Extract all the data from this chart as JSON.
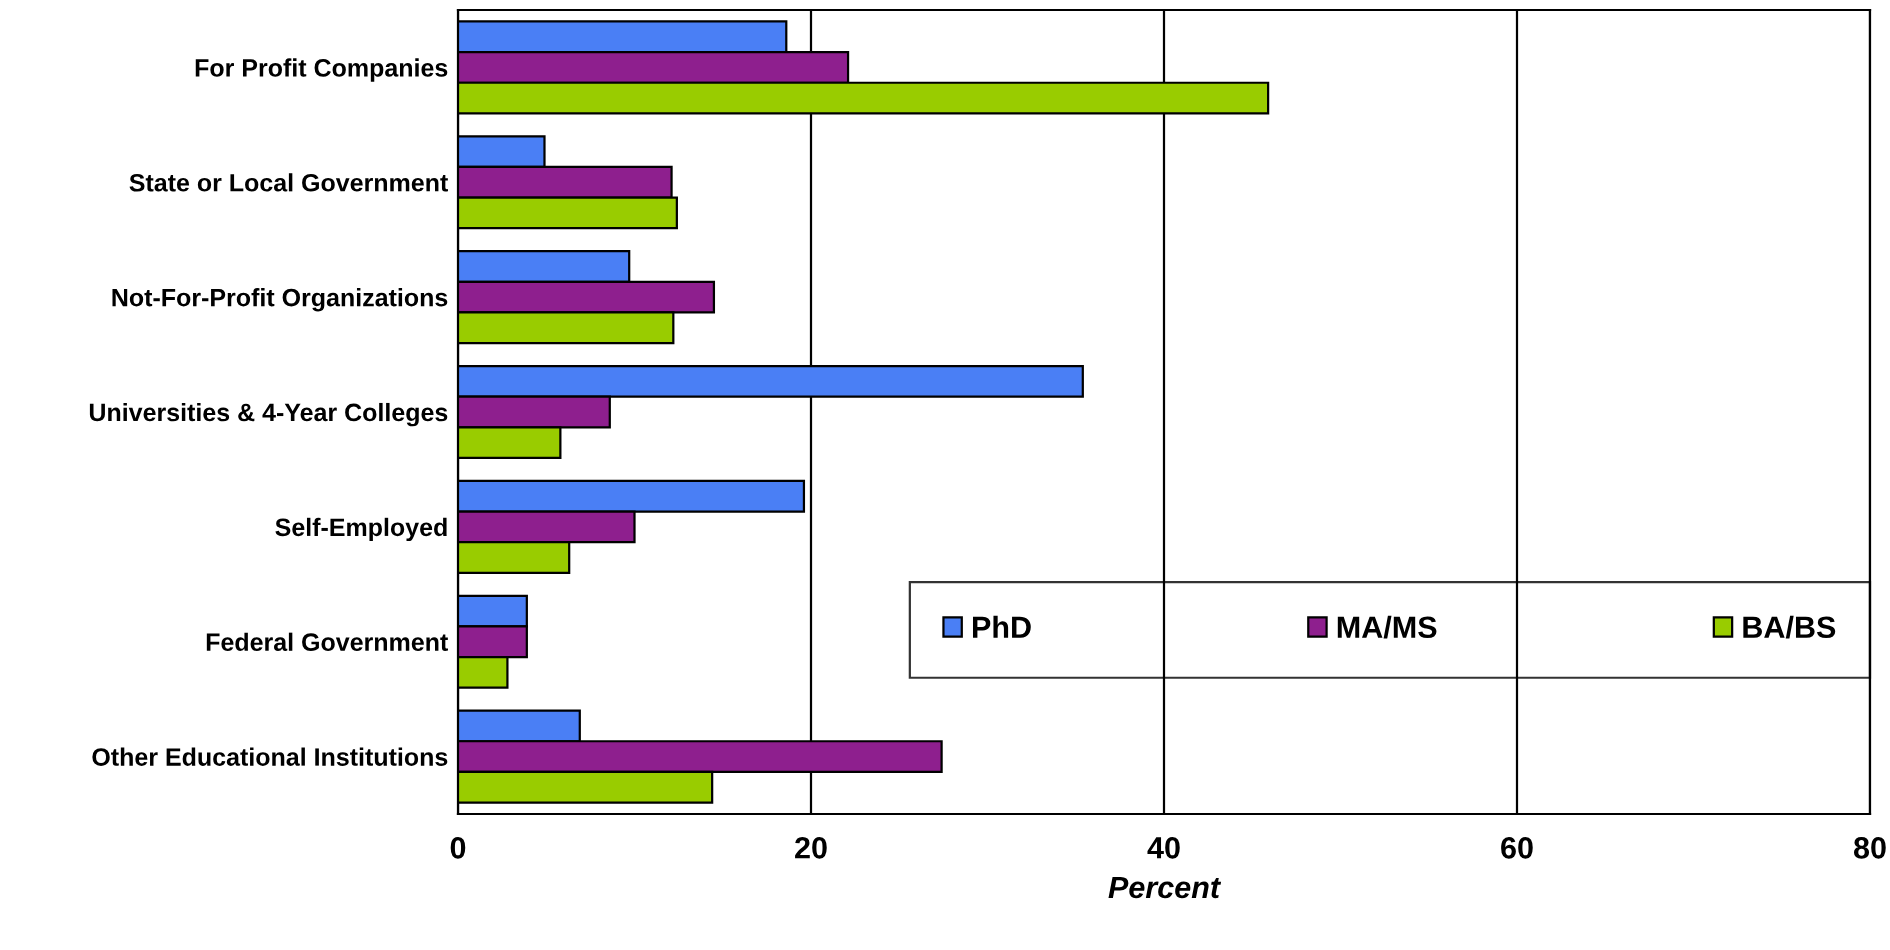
{
  "chart_data": {
    "type": "bar",
    "orientation": "horizontal",
    "xlabel": "Percent",
    "categories": [
      "For Profit Companies",
      "State or Local Government",
      "Not-For-Profit Organizations",
      "Universities & 4-Year Colleges",
      "Self-Employed",
      "Federal Government",
      "Other Educational Institutions"
    ],
    "series": [
      {
        "name": "PhD",
        "color": "#4a7ff5",
        "values": [
          18.6,
          4.9,
          9.7,
          35.4,
          19.6,
          3.9,
          6.9
        ]
      },
      {
        "name": "MA/MS",
        "color": "#8e1f8e",
        "values": [
          22.1,
          12.1,
          14.5,
          8.6,
          10.0,
          3.9,
          27.4
        ]
      },
      {
        "name": "BA/BS",
        "color": "#99cc00",
        "values": [
          45.9,
          12.4,
          12.2,
          5.8,
          6.3,
          2.8,
          14.4
        ]
      }
    ],
    "xlim": [
      0,
      80
    ],
    "xticks": [
      0,
      20,
      40,
      60,
      80
    ],
    "grid": "x",
    "legend": "bottom right"
  }
}
